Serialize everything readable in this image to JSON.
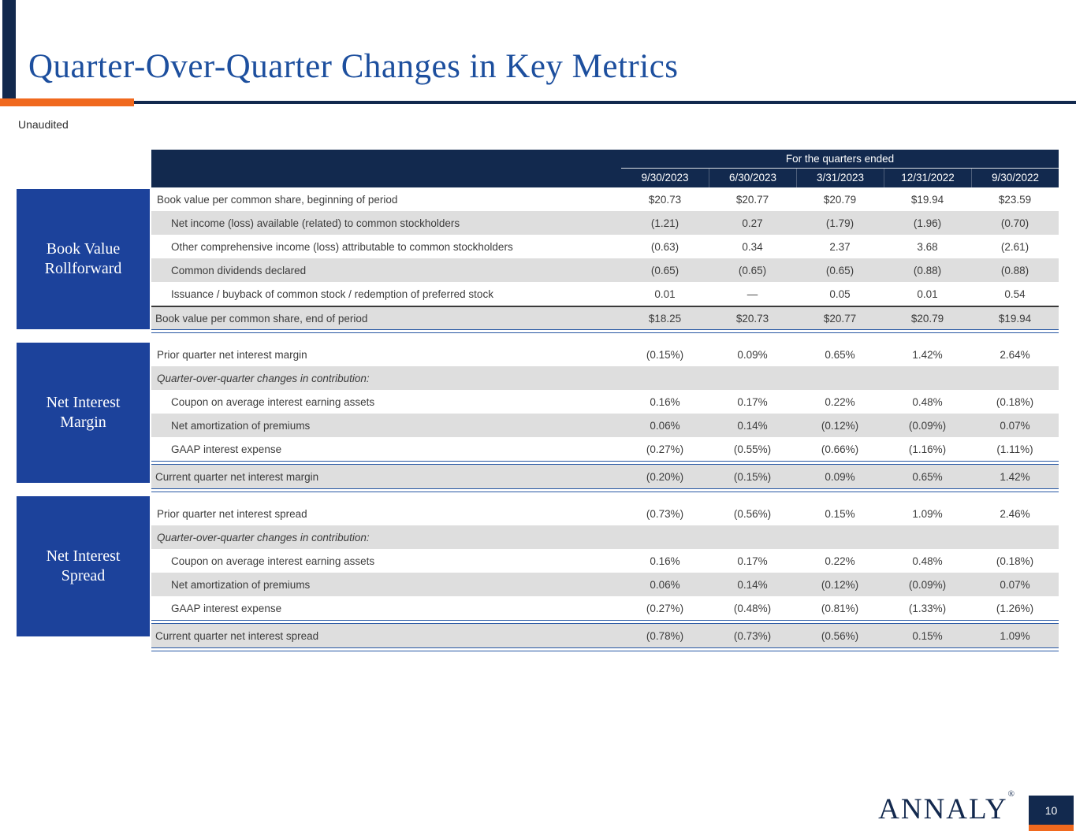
{
  "page": {
    "title": "Quarter-Over-Quarter Changes in Key Metrics",
    "subtitle": "Unaudited",
    "footer_logo": "ANNALY",
    "footer_logo_mark": "®",
    "page_number": "10"
  },
  "colors": {
    "header_navy": "#12294E",
    "category_blue": "#1C429B",
    "accent_orange": "#F0691E",
    "title_blue": "#1D4F9E",
    "shaded_row_gray": "#DEDEDE",
    "rule_blue": "#2656A3",
    "body_text": "#3C3C3C"
  },
  "table": {
    "header_group": "For the quarters ended",
    "columns": [
      "9/30/2023",
      "6/30/2023",
      "3/31/2023",
      "12/31/2022",
      "9/30/2022"
    ],
    "sections": [
      {
        "category_lines": [
          "Book Value",
          "Rollforward"
        ],
        "rows": [
          {
            "type": "data",
            "indent": 0,
            "label": "Book value per common share, beginning of period",
            "values": [
              "$20.73",
              "$20.77",
              "$20.79",
              "$19.94",
              "$23.59"
            ]
          },
          {
            "type": "data",
            "indent": 1,
            "label": "Net income (loss) available (related) to common stockholders",
            "values": [
              "(1.21)",
              "0.27",
              "(1.79)",
              "(1.96)",
              "(0.70)"
            ]
          },
          {
            "type": "data",
            "indent": 1,
            "label": "Other comprehensive income (loss) attributable to common stockholders",
            "values": [
              "(0.63)",
              "0.34",
              "2.37",
              "3.68",
              "(2.61)"
            ]
          },
          {
            "type": "data",
            "indent": 1,
            "label": "Common dividends declared",
            "values": [
              "(0.65)",
              "(0.65)",
              "(0.65)",
              "(0.88)",
              "(0.88)"
            ]
          },
          {
            "type": "data",
            "indent": 1,
            "label": "Issuance / buyback of common stock / redemption of preferred stock",
            "values": [
              "0.01",
              "—",
              "0.05",
              "0.01",
              "0.54"
            ]
          },
          {
            "type": "total",
            "rule_top": "dark",
            "indent": 0,
            "label": "Book value per common share, end of period",
            "values": [
              "$18.25",
              "$20.73",
              "$20.77",
              "$20.79",
              "$19.94"
            ]
          }
        ]
      },
      {
        "category_lines": [
          "Net Interest",
          "Margin"
        ],
        "rows": [
          {
            "type": "data",
            "indent": 0,
            "label": "Prior quarter net interest margin",
            "values": [
              "(0.15%)",
              "0.09%",
              "0.65%",
              "1.42%",
              "2.64%"
            ]
          },
          {
            "type": "subheader",
            "indent": 0,
            "label": "Quarter-over-quarter changes in contribution:",
            "values": [
              "",
              "",
              "",
              "",
              ""
            ]
          },
          {
            "type": "data",
            "indent": 1,
            "label": "Coupon on average interest earning assets",
            "values": [
              "0.16%",
              "0.17%",
              "0.22%",
              "0.48%",
              "(0.18%)"
            ]
          },
          {
            "type": "data",
            "indent": 1,
            "label": "Net amortization of premiums",
            "values": [
              "0.06%",
              "0.14%",
              "(0.12%)",
              "(0.09%)",
              "0.07%"
            ]
          },
          {
            "type": "data",
            "indent": 1,
            "label": "GAAP interest expense",
            "values": [
              "(0.27%)",
              "(0.55%)",
              "(0.66%)",
              "(1.16%)",
              "(1.11%)"
            ]
          },
          {
            "type": "total",
            "rule_top": "double",
            "indent": 0,
            "label": "Current quarter net interest margin",
            "values": [
              "(0.20%)",
              "(0.15%)",
              "0.09%",
              "0.65%",
              "1.42%"
            ]
          }
        ]
      },
      {
        "category_lines": [
          "Net Interest",
          "Spread"
        ],
        "rows": [
          {
            "type": "data",
            "indent": 0,
            "label": "Prior quarter net interest spread",
            "values": [
              "(0.73%)",
              "(0.56%)",
              "0.15%",
              "1.09%",
              "2.46%"
            ]
          },
          {
            "type": "subheader",
            "indent": 0,
            "label": "Quarter-over-quarter changes in contribution:",
            "values": [
              "",
              "",
              "",
              "",
              ""
            ]
          },
          {
            "type": "data",
            "indent": 1,
            "label": "Coupon on average interest earning assets",
            "values": [
              "0.16%",
              "0.17%",
              "0.22%",
              "0.48%",
              "(0.18%)"
            ]
          },
          {
            "type": "data",
            "indent": 1,
            "label": "Net amortization of premiums",
            "values": [
              "0.06%",
              "0.14%",
              "(0.12%)",
              "(0.09%)",
              "0.07%"
            ]
          },
          {
            "type": "data",
            "indent": 1,
            "label": "GAAP interest expense",
            "values": [
              "(0.27%)",
              "(0.48%)",
              "(0.81%)",
              "(1.33%)",
              "(1.26%)"
            ]
          },
          {
            "type": "total",
            "rule_top": "double",
            "indent": 0,
            "label": "Current quarter net interest spread",
            "values": [
              "(0.78%)",
              "(0.73%)",
              "(0.56%)",
              "0.15%",
              "1.09%"
            ]
          }
        ]
      }
    ]
  }
}
